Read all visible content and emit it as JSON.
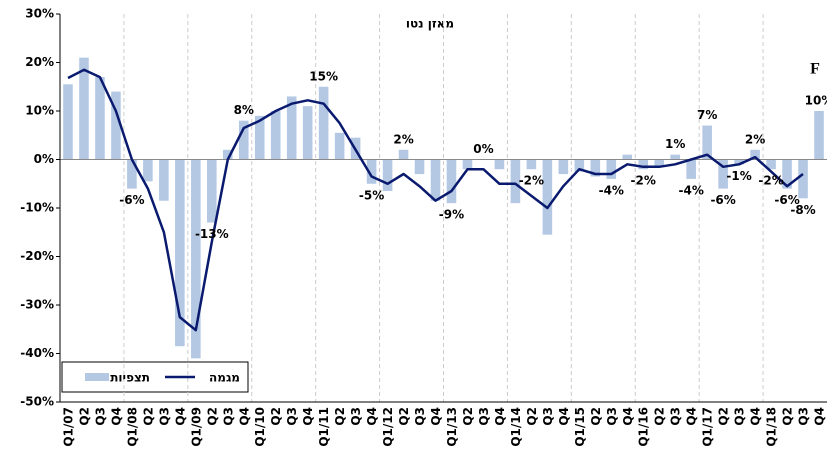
{
  "chart_data": {
    "type": "bar_line",
    "title": "מאזן נטו",
    "annotation": "F",
    "categories": [
      "Q1/07",
      "Q2",
      "Q3",
      "Q4",
      "Q1/08",
      "Q2",
      "Q3",
      "Q4",
      "Q1/09",
      "Q2",
      "Q3",
      "Q4",
      "Q1/10",
      "Q2",
      "Q3",
      "Q4",
      "Q1/11",
      "Q2",
      "Q3",
      "Q4",
      "Q1/12",
      "Q2",
      "Q3",
      "Q4",
      "Q1/13",
      "Q2",
      "Q3",
      "Q4",
      "Q1/14",
      "Q2",
      "Q3",
      "Q4",
      "Q1/15",
      "Q2",
      "Q3",
      "Q4",
      "Q1/16",
      "Q2",
      "Q3",
      "Q4",
      "Q1/17",
      "Q2",
      "Q3",
      "Q4",
      "Q1/18",
      "Q2",
      "Q3",
      "Q4"
    ],
    "series": [
      {
        "name": "תצפיות",
        "kind": "bar",
        "color": "#b4c8e4",
        "values": [
          15.5,
          21,
          17,
          14,
          -6,
          -4.5,
          -8.5,
          -38.5,
          -41,
          -13,
          2,
          8,
          9,
          10,
          13,
          11,
          15,
          5.5,
          4.5,
          -5,
          -6.5,
          2,
          -3,
          -8.5,
          -9,
          -2,
          0,
          -2,
          -9,
          -2,
          -15.5,
          -3,
          -2.5,
          -3.5,
          -4,
          1,
          -2,
          -1.5,
          1,
          -4,
          7,
          -6,
          -1,
          2,
          -2,
          -6,
          -8,
          10
        ],
        "value_labels": [
          null,
          null,
          null,
          null,
          "-6%",
          null,
          null,
          null,
          null,
          "-13%",
          null,
          "8%",
          null,
          null,
          null,
          null,
          "15%",
          null,
          null,
          "-5%",
          null,
          "2%",
          null,
          null,
          "-9%",
          null,
          "0%",
          null,
          null,
          "-2%",
          null,
          null,
          null,
          null,
          "-4%",
          null,
          "-2%",
          null,
          "1%",
          "-4%",
          "7%",
          "-6%",
          "-1%",
          "2%",
          "-2%",
          "-6%",
          "-8%",
          "10%"
        ]
      },
      {
        "name": "מגמה",
        "kind": "line",
        "color": "#0a1a6e",
        "values": [
          16.8,
          18.5,
          17,
          10,
          0,
          -6,
          -15,
          -32.5,
          -35.2,
          -17,
          0,
          6.5,
          8,
          10,
          11.5,
          12.2,
          11.5,
          7.5,
          2,
          -3.5,
          -5,
          -3,
          -5.5,
          -8.5,
          -6.5,
          -2,
          -2,
          -5,
          -5,
          -7.5,
          -10,
          -5.5,
          -2,
          -3,
          -3,
          -1,
          -1.5,
          -1.5,
          -1,
          0,
          1,
          -1.5,
          -1,
          0.5,
          -2.5,
          -5.5,
          -3,
          null
        ]
      }
    ],
    "ylim": [
      -50,
      30
    ],
    "yticks": [
      {
        "value": -50,
        "label": "-50%"
      },
      {
        "value": -40,
        "label": "-40%"
      },
      {
        "value": -30,
        "label": "-30%"
      },
      {
        "value": -20,
        "label": "-20%"
      },
      {
        "value": -10,
        "label": "-10%"
      },
      {
        "value": 0,
        "label": "0%"
      },
      {
        "value": 10,
        "label": "10%"
      },
      {
        "value": 20,
        "label": "20%"
      },
      {
        "value": 30,
        "label": "30%"
      }
    ]
  }
}
